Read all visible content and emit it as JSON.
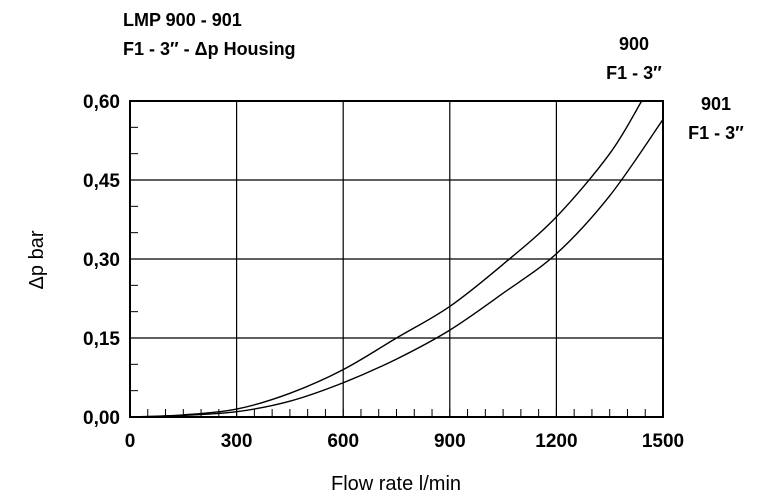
{
  "chart_data": {
    "type": "line",
    "title": [
      "LMP 900 - 901",
      "F1 - 3″ - Δp  Housing"
    ],
    "xlabel": "Flow rate l/min",
    "ylabel": "Δp bar",
    "xlim": [
      0,
      1500
    ],
    "ylim": [
      0,
      0.6
    ],
    "x_ticks": [
      "0",
      "300",
      "600",
      "900",
      "1200",
      "1500"
    ],
    "y_ticks": [
      "0,00",
      "0,15",
      "0,30",
      "0,45",
      "0,60"
    ],
    "grid": true,
    "series": [
      {
        "name": [
          "900",
          "F1 - 3″"
        ],
        "x": [
          0,
          150,
          300,
          450,
          600,
          750,
          900,
          1050,
          1200,
          1350,
          1440
        ],
        "y": [
          0,
          0.004,
          0.015,
          0.045,
          0.09,
          0.15,
          0.21,
          0.29,
          0.38,
          0.5,
          0.6
        ]
      },
      {
        "name": [
          "901",
          "F1 - 3″"
        ],
        "x": [
          0,
          150,
          300,
          450,
          600,
          750,
          900,
          1050,
          1200,
          1350,
          1500
        ],
        "y": [
          0,
          0.003,
          0.01,
          0.03,
          0.065,
          0.11,
          0.165,
          0.235,
          0.31,
          0.42,
          0.565
        ]
      }
    ]
  }
}
